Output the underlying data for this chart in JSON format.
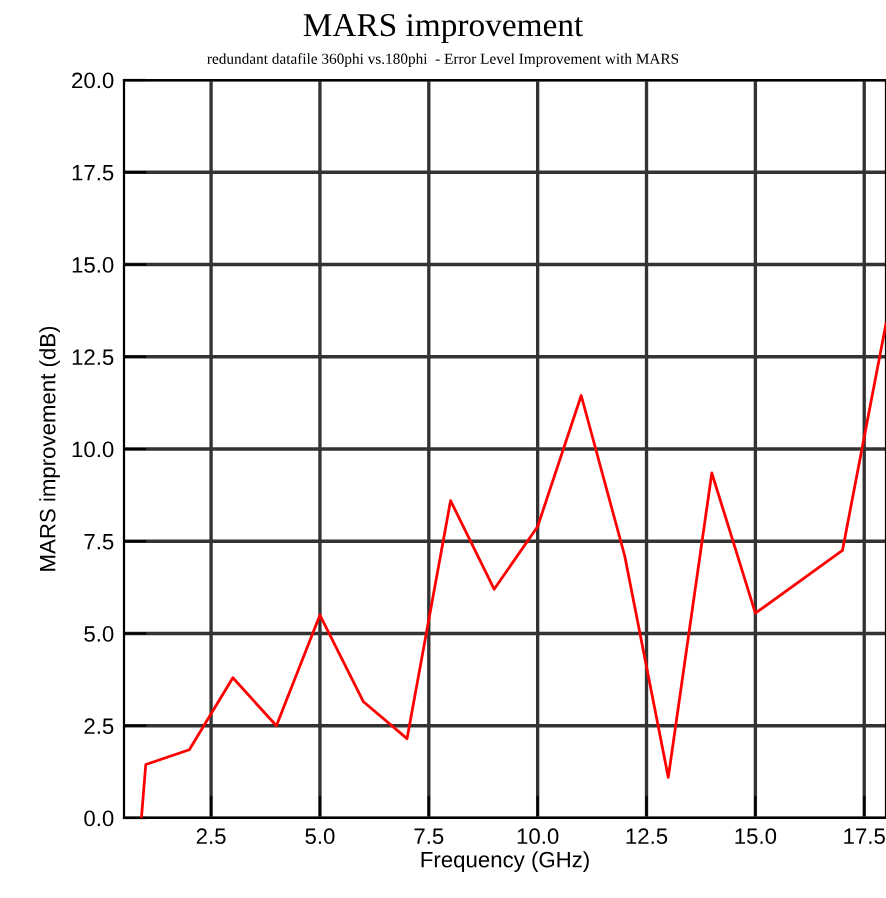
{
  "chart_data": {
    "type": "line",
    "title": "MARS improvement",
    "subtitle": "redundant datafile 360phi vs.180phi  - Error Level Improvement with MARS",
    "xlabel": "Frequency (GHz)",
    "ylabel": "MARS improvement (dB)",
    "x": [
      0.9,
      1,
      2,
      3,
      4,
      5,
      6,
      7,
      8,
      9,
      10,
      11,
      12,
      13,
      14,
      15,
      17,
      18
    ],
    "series": [
      {
        "color": "#ff0000",
        "values": [
          0,
          1.45,
          1.85,
          3.8,
          2.5,
          5.5,
          3.15,
          2.15,
          8.6,
          6.2,
          7.9,
          11.45,
          7.1,
          1.1,
          9.35,
          5.55,
          7.25,
          13.4
        ]
      }
    ],
    "xlim": [
      0.5,
      18
    ],
    "xticks": [
      {
        "value": 2.5,
        "label": "2.5"
      },
      {
        "value": 5,
        "label": "5.0"
      },
      {
        "value": 7.5,
        "label": "7.5"
      },
      {
        "value": 10,
        "label": "10.0"
      },
      {
        "value": 12.5,
        "label": "12.5"
      },
      {
        "value": 15,
        "label": "15.0"
      },
      {
        "value": 17.5,
        "label": "17.5"
      }
    ],
    "ylim": [
      0,
      20
    ],
    "yticks": [
      {
        "value": 0,
        "label": "0.0"
      },
      {
        "value": 2.5,
        "label": "2.5"
      },
      {
        "value": 5,
        "label": "5.0"
      },
      {
        "value": 7.5,
        "label": "7.5"
      },
      {
        "value": 10,
        "label": "10.0"
      },
      {
        "value": 12.5,
        "label": "12.5"
      },
      {
        "value": 15,
        "label": "15.0"
      },
      {
        "value": 17.5,
        "label": "17.5"
      },
      {
        "value": 20,
        "label": "20.0"
      }
    ],
    "grid": true,
    "marker": "none",
    "line_style": "solid"
  }
}
